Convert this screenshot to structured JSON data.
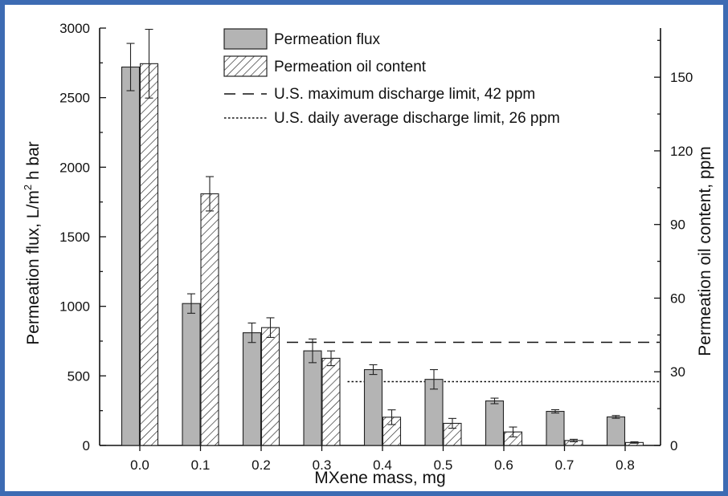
{
  "chart_data": {
    "type": "bar",
    "xlabel": "MXene mass, mg",
    "ylabel": "Permeation flux, L/m",
    "ylabel_sup": "2",
    "ylabel_tail": " h bar",
    "y2label": "Permeation oil content, ppm",
    "categories": [
      "0.0",
      "0.1",
      "0.2",
      "0.3",
      "0.4",
      "0.5",
      "0.6",
      "0.7",
      "0.8"
    ],
    "ylim": [
      0,
      3000
    ],
    "y2lim": [
      0,
      170
    ],
    "yticks": [
      "0",
      "500",
      "1000",
      "1500",
      "2000",
      "2500",
      "3000"
    ],
    "y2ticks": [
      "0",
      "30",
      "60",
      "90",
      "120",
      "150"
    ],
    "series": [
      {
        "name": "Permeation flux",
        "axis": "left",
        "fill": "#b4b4b4",
        "values": [
          2720,
          1020,
          810,
          680,
          545,
          475,
          320,
          245,
          205
        ],
        "errors": [
          170,
          70,
          70,
          85,
          35,
          70,
          20,
          12,
          10
        ]
      },
      {
        "name": "Permeation oil content",
        "axis": "right",
        "fill": "hatch",
        "values": [
          155.5,
          102.5,
          48.0,
          35.5,
          11.5,
          9.0,
          5.5,
          2.0,
          1.2
        ],
        "errors": [
          14.0,
          7.0,
          4.0,
          3.0,
          3.0,
          2.0,
          2.0,
          0.5,
          0.3
        ]
      }
    ],
    "reference_lines": [
      {
        "name": "U.S. maximum discharge limit, 42 ppm",
        "value": 42,
        "style": "dashed",
        "from_category": "0.2"
      },
      {
        "name": "U.S. daily average discharge limit, 26 ppm",
        "value": 26,
        "style": "dotted",
        "from_category": "0.3"
      }
    ],
    "legend_position": "top-center"
  },
  "colors": {
    "border": "#3d6bb3",
    "bar_gray": "#b4b4b4"
  }
}
